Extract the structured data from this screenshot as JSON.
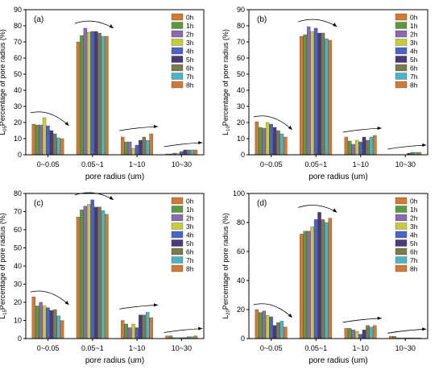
{
  "legend_colors": [
    "#d17a35",
    "#5a9a3c",
    "#8b6bb0",
    "#c9cc3a",
    "#4a64c4",
    "#4a3a7a",
    "#7b7a4e",
    "#4cb4c4",
    "#d17a35"
  ],
  "chart_data": [
    {
      "type": "bar",
      "panel_label": "(a)",
      "ylabel_main": "L",
      "ylabel_sub": "05",
      "ylabel_rest": "Percentage of pore radius  (%)",
      "xlabel": "pore radius (um)",
      "categories": [
        "0~0.05",
        "0.05~1",
        "1~10",
        "10~30"
      ],
      "ylim": [
        0,
        90
      ],
      "yticks": [
        "0",
        "10",
        "20",
        "30",
        "40",
        "50",
        "60",
        "70",
        "80",
        "90"
      ],
      "legend": [
        "0h",
        "1h",
        "2h",
        "3h",
        "4h",
        "5h",
        "6h",
        "7h",
        "8h"
      ],
      "legend_position": "top-right",
      "series": [
        {
          "name": "0h",
          "values": [
            19,
            70,
            11,
            0.5
          ]
        },
        {
          "name": "1h",
          "values": [
            18.5,
            74,
            8,
            0.5
          ]
        },
        {
          "name": "2h",
          "values": [
            18.5,
            78.5,
            8,
            1
          ]
        },
        {
          "name": "3h",
          "values": [
            23,
            76,
            4,
            1
          ]
        },
        {
          "name": "4h",
          "values": [
            18,
            76.5,
            6,
            2
          ]
        },
        {
          "name": "5h",
          "values": [
            15,
            76.5,
            9,
            3
          ]
        },
        {
          "name": "6h",
          "values": [
            13,
            75.5,
            11,
            3
          ]
        },
        {
          "name": "7h",
          "values": [
            10.5,
            73.5,
            9,
            3
          ]
        },
        {
          "name": "8h",
          "values": [
            10,
            73.5,
            13,
            3
          ]
        }
      ]
    },
    {
      "type": "bar",
      "panel_label": "(b)",
      "ylabel_main": "L",
      "ylabel_sub": "10",
      "ylabel_rest": "Percentage of pore radius  (%)",
      "xlabel": "pore radius (um)",
      "categories": [
        "0~0.05",
        "0.05~1",
        "1~10",
        "10~30"
      ],
      "ylim": [
        0,
        90
      ],
      "yticks": [
        "0",
        "10",
        "20",
        "30",
        "40",
        "50",
        "60",
        "70",
        "80",
        "90"
      ],
      "legend": [
        "0h",
        "1h",
        "2h",
        "3h",
        "4h",
        "5h",
        "6h",
        "7h",
        "8h"
      ],
      "legend_position": "top-right",
      "series": [
        {
          "name": "0h",
          "values": [
            20.5,
            73.5,
            11,
            0
          ]
        },
        {
          "name": "1h",
          "values": [
            17,
            74.5,
            8.5,
            0
          ]
        },
        {
          "name": "2h",
          "values": [
            16.5,
            79.5,
            6.5,
            0
          ]
        },
        {
          "name": "3h",
          "values": [
            20,
            76.5,
            9,
            0
          ]
        },
        {
          "name": "4h",
          "values": [
            19,
            78.5,
            8,
            0
          ]
        },
        {
          "name": "5h",
          "values": [
            17,
            75.5,
            11,
            1
          ]
        },
        {
          "name": "6h",
          "values": [
            15,
            75.5,
            9,
            1.5
          ]
        },
        {
          "name": "7h",
          "values": [
            13,
            72,
            11,
            1.5
          ]
        },
        {
          "name": "8h",
          "values": [
            11,
            71,
            12,
            1.5
          ]
        }
      ]
    },
    {
      "type": "bar",
      "panel_label": "(c)",
      "ylabel_main": "L",
      "ylabel_sub": "15",
      "ylabel_rest": "Percentage of pore radius  (%)",
      "xlabel": "pore radius (um)",
      "categories": [
        "0~0.05",
        "0.05~1",
        "1~10",
        "10~30"
      ],
      "ylim": [
        0,
        80
      ],
      "yticks": [
        "0",
        "10",
        "20",
        "30",
        "40",
        "50",
        "60",
        "70",
        "80"
      ],
      "legend": [
        "0h",
        "1h",
        "2h",
        "3h",
        "4h",
        "5h",
        "6h",
        "7h",
        "8h"
      ],
      "legend_position": "top-right",
      "series": [
        {
          "name": "0h",
          "values": [
            23,
            67,
            10,
            1.5
          ]
        },
        {
          "name": "1h",
          "values": [
            18,
            71,
            8,
            1.5
          ]
        },
        {
          "name": "2h",
          "values": [
            20,
            73,
            6,
            0.5
          ]
        },
        {
          "name": "3h",
          "values": [
            18,
            74,
            8,
            0.5
          ]
        },
        {
          "name": "4h",
          "values": [
            17,
            76.5,
            6,
            0.5
          ]
        },
        {
          "name": "5h",
          "values": [
            15.5,
            72.5,
            13,
            0.5
          ]
        },
        {
          "name": "6h",
          "values": [
            16,
            72.5,
            13,
            1
          ]
        },
        {
          "name": "7h",
          "values": [
            12.5,
            70.5,
            14.5,
            1
          ]
        },
        {
          "name": "8h",
          "values": [
            10,
            68.5,
            11.5,
            1.5
          ]
        }
      ]
    },
    {
      "type": "bar",
      "panel_label": "(d)",
      "ylabel_main": "L",
      "ylabel_sub": "20",
      "ylabel_rest": "Percentage of pore radius  (%)",
      "xlabel": "pore radius (um)",
      "categories": [
        "0~0.05",
        "0.05~1",
        "1~10",
        "10~30"
      ],
      "ylim": [
        0,
        100
      ],
      "yticks": [
        "0",
        "20",
        "40",
        "60",
        "80",
        "100"
      ],
      "legend": [
        "0h",
        "1h",
        "2h",
        "3h",
        "4h",
        "5h",
        "6h",
        "7h",
        "8h"
      ],
      "legend_position": "top-right",
      "series": [
        {
          "name": "0h",
          "values": [
            20,
            72,
            7,
            1.5
          ]
        },
        {
          "name": "1h",
          "values": [
            18,
            74,
            7,
            1.5
          ]
        },
        {
          "name": "2h",
          "values": [
            19,
            74,
            6,
            0.5
          ]
        },
        {
          "name": "3h",
          "values": [
            16,
            77,
            5,
            0.5
          ]
        },
        {
          "name": "4h",
          "values": [
            15,
            82,
            3,
            0.5
          ]
        },
        {
          "name": "5h",
          "values": [
            9,
            87,
            6,
            0.5
          ]
        },
        {
          "name": "6h",
          "values": [
            11,
            82,
            9,
            0.5
          ]
        },
        {
          "name": "7h",
          "values": [
            12,
            80,
            8,
            0.5
          ]
        },
        {
          "name": "8h",
          "values": [
            8,
            83,
            9,
            0.5
          ]
        }
      ]
    }
  ]
}
